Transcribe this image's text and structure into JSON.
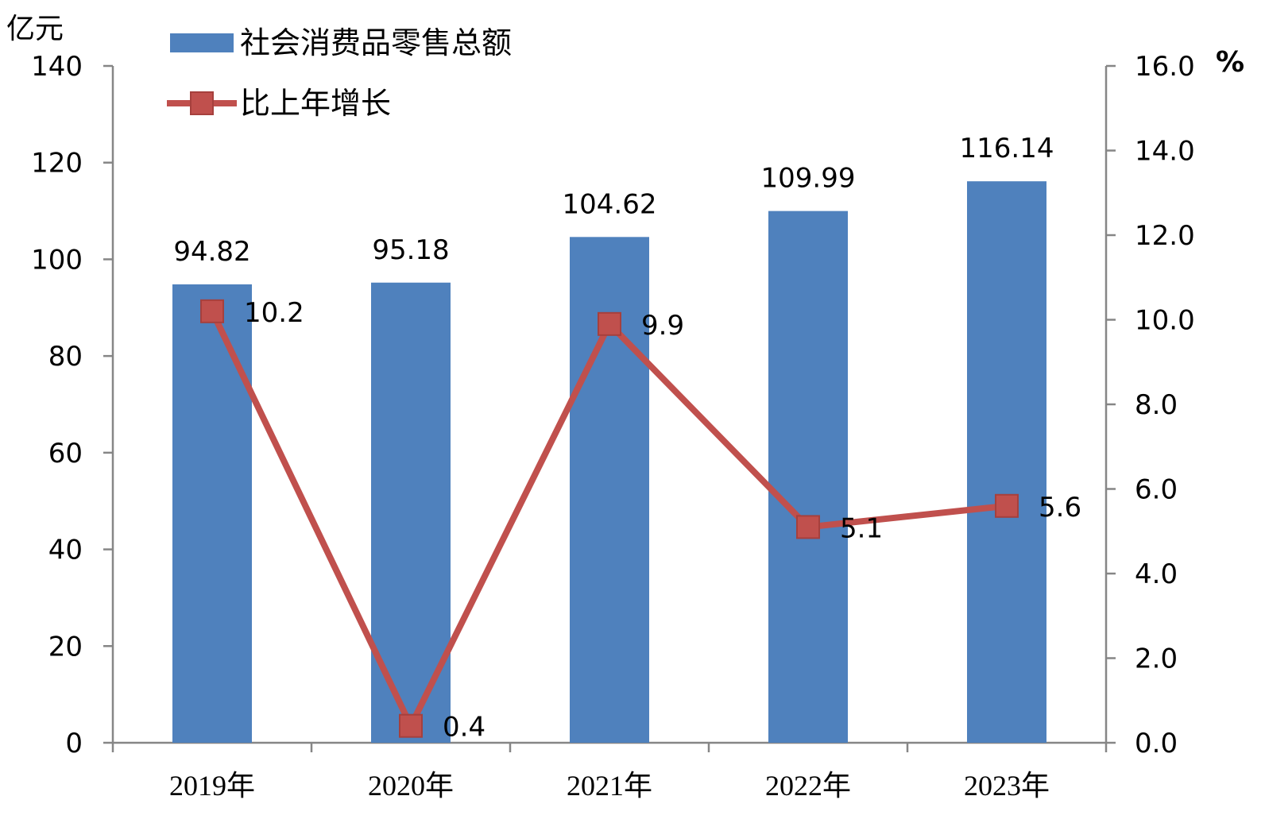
{
  "chart_data": {
    "type": "bar",
    "categories": [
      "2019年",
      "2020年",
      "2021年",
      "2022年",
      "2023年"
    ],
    "series": [
      {
        "name": "社会消费品零售总额",
        "type": "bar",
        "axis": "left",
        "values": [
          94.82,
          95.18,
          104.62,
          109.99,
          116.14
        ],
        "labels": [
          "94.82",
          "95.18",
          "104.62",
          "109.99",
          "116.14"
        ],
        "color": "#4F81BD"
      },
      {
        "name": "比上年增长",
        "type": "line",
        "axis": "right",
        "values": [
          10.2,
          0.4,
          9.9,
          5.1,
          5.6
        ],
        "labels": [
          "10.2",
          "0.4",
          "9.9",
          "5.1",
          "5.6"
        ],
        "color": "#C0504D"
      }
    ],
    "y_left": {
      "unit": "亿元",
      "range": [
        0,
        140
      ],
      "ticks": [
        "0",
        "20",
        "40",
        "60",
        "80",
        "100",
        "120",
        "140"
      ]
    },
    "y_right": {
      "unit": "%",
      "range": [
        0,
        16
      ],
      "ticks": [
        "0.0",
        "2.0",
        "4.0",
        "6.0",
        "8.0",
        "10.0",
        "12.0",
        "14.0",
        "16.0"
      ]
    },
    "legend_position": "top-left",
    "grid": false
  }
}
